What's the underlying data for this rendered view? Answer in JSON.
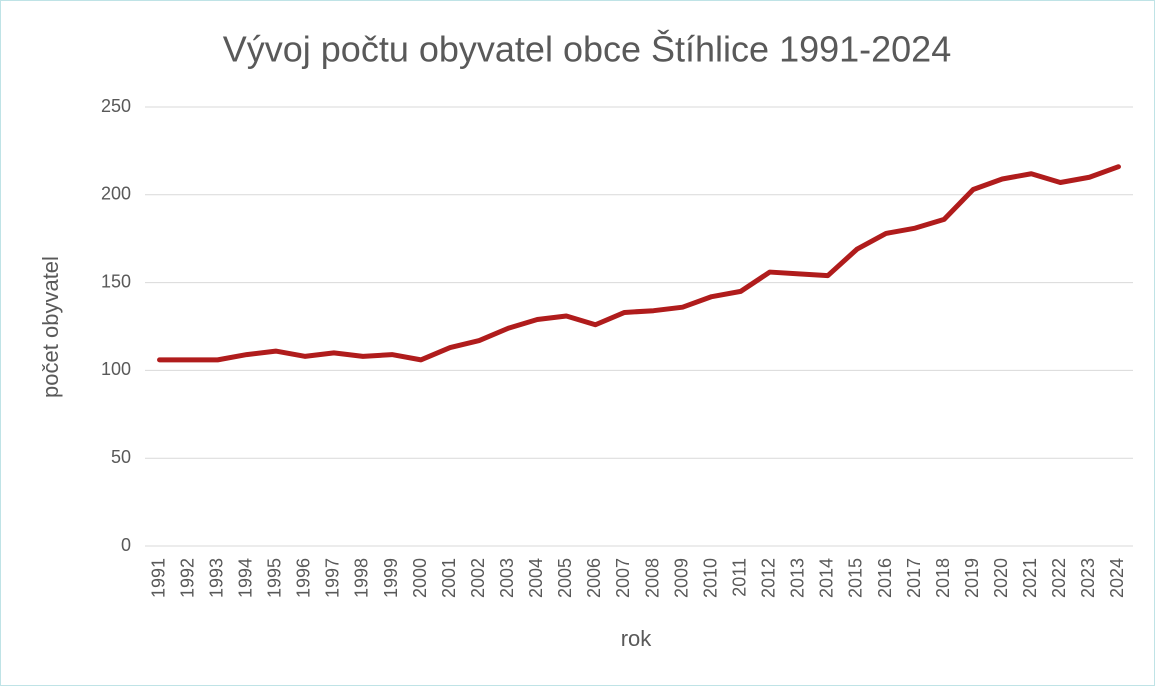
{
  "chart_data": {
    "type": "line",
    "title": "Vývoj počtu obyvatel obce Štíhlice 1991-2024",
    "x_label": "rok",
    "y_label": "počet obyvatel",
    "categories": [
      "1991",
      "1992",
      "1993",
      "1994",
      "1995",
      "1996",
      "1997",
      "1998",
      "1999",
      "2000",
      "2001",
      "2002",
      "2003",
      "2004",
      "2005",
      "2006",
      "2007",
      "2008",
      "2009",
      "2010",
      "2011",
      "2012",
      "2013",
      "2014",
      "2015",
      "2016",
      "2017",
      "2018",
      "2019",
      "2020",
      "2021",
      "2022",
      "2023",
      "2024"
    ],
    "series": [
      {
        "name": "počet obyvatel",
        "color": "#b01c1c",
        "values": [
          106,
          106,
          106,
          109,
          111,
          108,
          110,
          108,
          109,
          106,
          113,
          117,
          124,
          129,
          131,
          126,
          133,
          134,
          136,
          142,
          145,
          156,
          155,
          154,
          169,
          178,
          181,
          186,
          203,
          209,
          212,
          207,
          210,
          216
        ]
      }
    ],
    "ylim": [
      0,
      250
    ],
    "yticks": [
      0,
      50,
      100,
      150,
      200,
      250
    ],
    "grid": true
  }
}
